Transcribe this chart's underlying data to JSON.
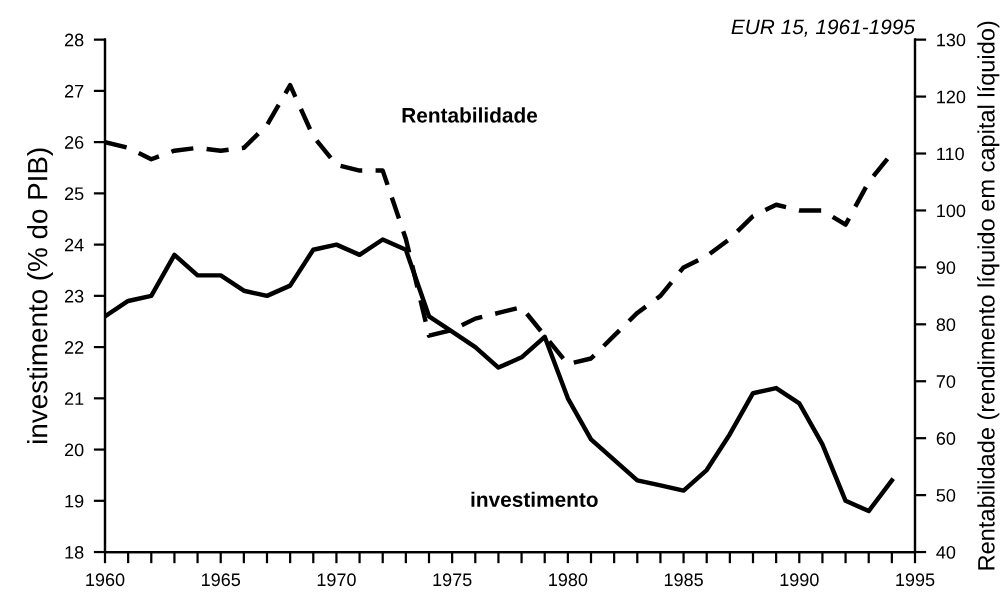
{
  "chart_data": {
    "type": "line",
    "title": "EUR 15, 1961-1995",
    "ylabel": "investimento (% do PIB)",
    "y2label": "Rentabilidade (rendimento líquido em capital líquido)",
    "x": [
      1960,
      1961,
      1962,
      1963,
      1964,
      1965,
      1966,
      1967,
      1968,
      1969,
      1970,
      1971,
      1972,
      1973,
      1974,
      1975,
      1976,
      1977,
      1978,
      1979,
      1980,
      1981,
      1982,
      1983,
      1984,
      1985,
      1986,
      1987,
      1988,
      1989,
      1990,
      1991,
      1992,
      1993,
      1994
    ],
    "series": [
      {
        "color": "#000000",
        "line_style": "solid",
        "values": [
          22.6,
          22.9,
          23.0,
          23.8,
          23.4,
          23.4,
          23.1,
          23.0,
          23.2,
          23.9,
          24.0,
          23.8,
          24.1,
          23.9,
          22.6,
          22.3,
          22.0,
          21.6,
          21.8,
          22.2,
          21.0,
          20.2,
          19.8,
          19.4,
          19.3,
          19.2,
          19.6,
          20.3,
          21.1,
          21.2,
          20.9,
          20.1,
          19.0,
          18.8,
          19.4
        ]
      },
      {
        "color": "#000000",
        "line_style": "dashed",
        "axis": "y2",
        "values": [
          112,
          111,
          109,
          110.5,
          111,
          110.5,
          111,
          115,
          122,
          113,
          108,
          107,
          107,
          95,
          78,
          79,
          81,
          82,
          83,
          78,
          73,
          74,
          78,
          82,
          85,
          90,
          92,
          95,
          99,
          101,
          100,
          100,
          97.5,
          105,
          110
        ]
      }
    ],
    "annotations": [
      "Rentabilidade",
      "investimento"
    ],
    "xlim": [
      1960,
      1995
    ],
    "xticks": [
      1960,
      {
        "value": 1961,
        "label": null
      },
      {
        "value": 1962,
        "label": null
      },
      {
        "value": 1963,
        "label": null
      },
      {
        "value": 1964,
        "label": null
      },
      1965,
      {
        "value": 1966,
        "label": null
      },
      {
        "value": 1967,
        "label": null
      },
      {
        "value": 1968,
        "label": null
      },
      {
        "value": 1969,
        "label": null
      },
      1970,
      {
        "value": 1971,
        "label": null
      },
      {
        "value": 1972,
        "label": null
      },
      {
        "value": 1973,
        "label": null
      },
      {
        "value": 1974,
        "label": null
      },
      1975,
      {
        "value": 1976,
        "label": null
      },
      {
        "value": 1977,
        "label": null
      },
      {
        "value": 1978,
        "label": null
      },
      {
        "value": 1979,
        "label": null
      },
      1980,
      {
        "value": 1981,
        "label": null
      },
      {
        "value": 1982,
        "label": null
      },
      {
        "value": 1983,
        "label": null
      },
      {
        "value": 1984,
        "label": null
      },
      1985,
      {
        "value": 1986,
        "label": null
      },
      {
        "value": 1987,
        "label": null
      },
      {
        "value": 1988,
        "label": null
      },
      {
        "value": 1989,
        "label": null
      },
      1990,
      {
        "value": 1991,
        "label": null
      },
      {
        "value": 1992,
        "label": null
      },
      {
        "value": 1993,
        "label": null
      },
      {
        "value": 1994,
        "label": null
      },
      1995
    ],
    "ylim": [
      18,
      28
    ],
    "yticks": [
      18,
      19,
      20,
      21,
      22,
      23,
      24,
      25,
      26,
      27,
      28
    ],
    "y2lim": [
      40,
      130
    ],
    "y2ticks": [
      40,
      50,
      60,
      70,
      80,
      90,
      100,
      110,
      120,
      130
    ],
    "grid": false,
    "legend": false
  }
}
